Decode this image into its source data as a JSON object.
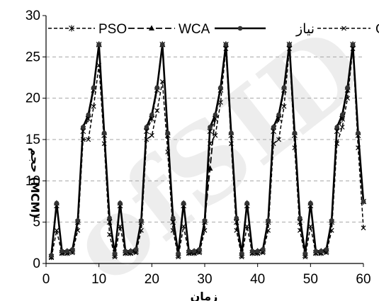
{
  "chart_data": {
    "type": "line",
    "title": "",
    "xlabel": "زمان",
    "ylabel": "حجم (MCM)",
    "xlim": [
      0,
      60
    ],
    "ylim": [
      0,
      30
    ],
    "xticks": [
      0,
      10,
      20,
      30,
      40,
      50,
      60
    ],
    "yticks": [
      0,
      5,
      10,
      15,
      20,
      25,
      30
    ],
    "grid": "horizontal-dashed",
    "legend_position": "top",
    "watermark": "ofSID",
    "x": [
      1,
      2,
      3,
      4,
      5,
      6,
      7,
      8,
      9,
      10,
      11,
      12,
      13,
      14,
      15,
      16,
      17,
      18,
      19,
      20,
      21,
      22,
      23,
      24,
      25,
      26,
      27,
      28,
      29,
      30,
      31,
      32,
      33,
      34,
      35,
      36,
      37,
      38,
      39,
      40,
      41,
      42,
      43,
      44,
      45,
      46,
      47,
      48,
      49,
      50,
      51,
      52,
      53,
      54,
      55,
      56,
      57,
      58,
      59,
      60
    ],
    "series": [
      {
        "name": "PSO",
        "style": "dashed",
        "marker": "star",
        "values": [
          0.8,
          7.0,
          1.3,
          1.3,
          1.5,
          5.0,
          16.0,
          17.5,
          21.0,
          26.5,
          15.5,
          5.0,
          1.0,
          7.0,
          1.3,
          1.3,
          1.5,
          5.0,
          16.0,
          17.5,
          21.0,
          26.5,
          15.5,
          5.0,
          1.0,
          7.0,
          1.3,
          1.3,
          1.5,
          5.0,
          16.0,
          17.5,
          21.0,
          26.5,
          15.5,
          5.0,
          1.0,
          7.0,
          1.3,
          1.3,
          1.5,
          5.0,
          16.0,
          17.5,
          21.0,
          26.5,
          15.5,
          5.0,
          1.0,
          7.0,
          1.3,
          1.3,
          1.5,
          5.0,
          16.0,
          17.5,
          21.0,
          26.5,
          15.5,
          7.5
        ]
      },
      {
        "name": "WCA",
        "style": "long-dash",
        "marker": "triangle",
        "values": [
          1.0,
          7.3,
          1.5,
          1.5,
          1.7,
          5.2,
          16.5,
          18.0,
          21.3,
          26.5,
          15.8,
          5.5,
          1.2,
          7.3,
          1.5,
          1.5,
          1.7,
          5.2,
          16.5,
          18.0,
          21.3,
          26.5,
          15.8,
          5.5,
          1.2,
          7.3,
          1.5,
          1.5,
          1.7,
          5.2,
          11.5,
          18.0,
          21.3,
          26.5,
          15.8,
          5.5,
          1.2,
          7.3,
          1.5,
          1.5,
          1.7,
          5.2,
          16.5,
          18.0,
          21.3,
          26.5,
          15.8,
          5.5,
          1.2,
          7.3,
          1.5,
          1.5,
          1.7,
          5.2,
          16.5,
          18.0,
          21.3,
          26.5,
          15.8,
          7.5
        ]
      },
      {
        "name": "نیاز",
        "style": "solid",
        "marker": "circle",
        "values": [
          1.0,
          7.3,
          1.5,
          1.5,
          1.7,
          5.2,
          16.5,
          18.0,
          21.3,
          26.5,
          15.8,
          5.5,
          1.2,
          7.3,
          1.5,
          1.5,
          1.7,
          5.2,
          16.5,
          18.0,
          21.3,
          26.5,
          15.8,
          5.5,
          1.2,
          7.3,
          1.5,
          1.5,
          1.7,
          5.2,
          16.5,
          18.0,
          21.3,
          26.5,
          15.8,
          5.5,
          1.2,
          7.3,
          1.5,
          1.5,
          1.7,
          5.2,
          16.5,
          18.0,
          21.3,
          26.5,
          15.8,
          5.5,
          1.2,
          7.3,
          1.5,
          1.5,
          1.7,
          5.2,
          16.5,
          18.0,
          21.3,
          26.5,
          15.8,
          7.5
        ]
      },
      {
        "name": "GA",
        "style": "dashed",
        "marker": "x",
        "values": [
          0.7,
          4.0,
          1.2,
          1.2,
          1.3,
          4.0,
          15.0,
          15.0,
          19.0,
          24.0,
          14.5,
          3.5,
          0.8,
          4.5,
          1.2,
          1.2,
          1.3,
          4.0,
          15.0,
          15.5,
          18.5,
          22.0,
          13.5,
          4.0,
          0.8,
          4.5,
          1.2,
          1.2,
          1.3,
          4.0,
          14.5,
          15.5,
          19.5,
          26.0,
          14.5,
          4.0,
          0.8,
          4.5,
          1.2,
          1.2,
          1.3,
          4.0,
          14.5,
          15.0,
          19.0,
          26.0,
          14.0,
          4.0,
          0.8,
          4.5,
          1.2,
          1.2,
          1.3,
          4.0,
          14.5,
          16.5,
          20.0,
          26.0,
          14.0,
          4.3
        ]
      }
    ]
  }
}
